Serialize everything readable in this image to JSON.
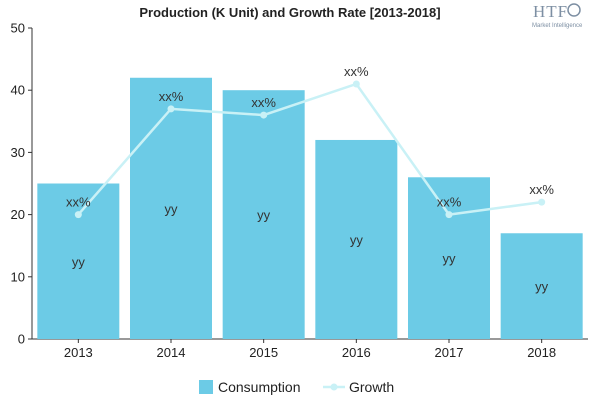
{
  "logo": {
    "main": "HTF",
    "sub": "Market Intelligence"
  },
  "chart_data": {
    "type": "bar",
    "title": "Production (K Unit) and Growth Rate [2013-2018]",
    "categories": [
      "2013",
      "2014",
      "2015",
      "2016",
      "2017",
      "2018"
    ],
    "ylim": [
      0,
      50
    ],
    "yticks": [
      0,
      10,
      20,
      30,
      40,
      50
    ],
    "grid": false,
    "legend_position": "bottom",
    "series": [
      {
        "name": "Consumption",
        "type": "bar",
        "color": "#6ccbe6",
        "values": [
          25,
          42,
          40,
          32,
          26,
          17
        ],
        "labels": [
          "yy",
          "yy",
          "yy",
          "yy",
          "yy",
          "yy"
        ]
      },
      {
        "name": "Growth",
        "type": "line",
        "color": "#c9f1f6",
        "values": [
          20,
          37,
          36,
          41,
          20,
          22
        ],
        "labels": [
          "xx%",
          "xx%",
          "xx%",
          "xx%",
          "xx%",
          "xx%"
        ]
      }
    ]
  }
}
